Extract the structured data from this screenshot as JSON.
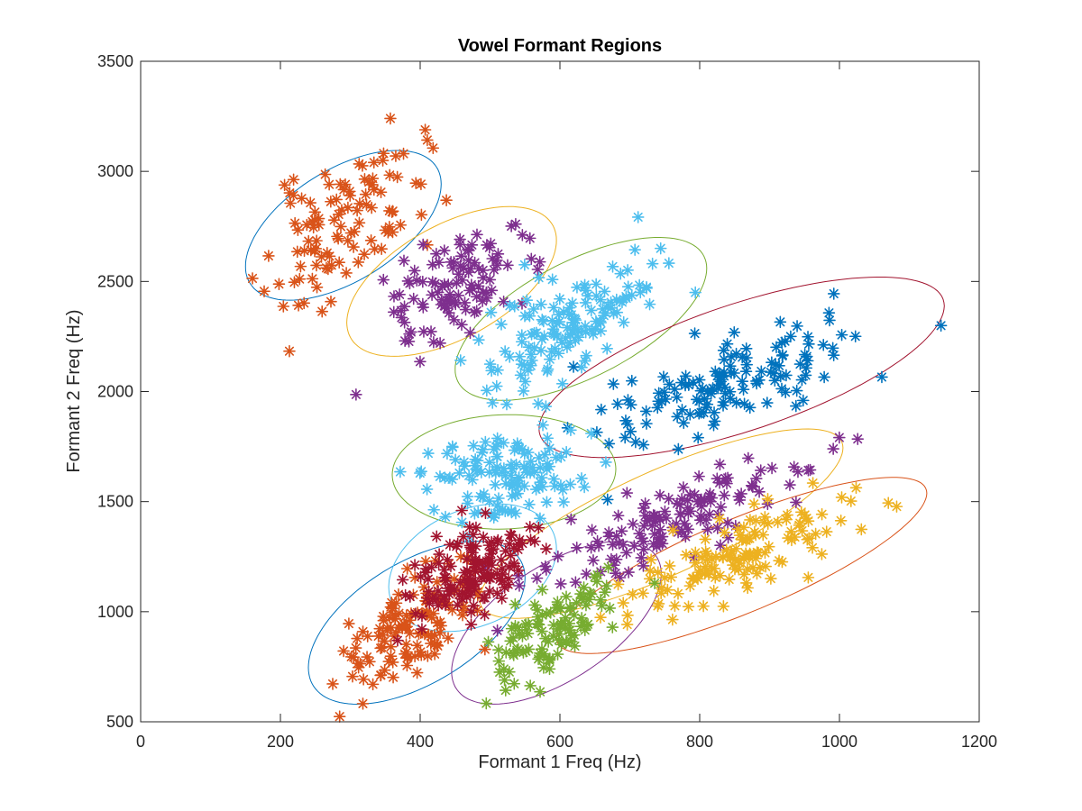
{
  "chart_data": {
    "type": "scatter",
    "title": "Vowel Formant Regions",
    "xlabel": "Formant 1 Freq (Hz)",
    "ylabel": "Formant 2 Freq (Hz)",
    "xlim": [
      0,
      1200
    ],
    "ylim": [
      500,
      3500
    ],
    "xticks": [
      0,
      200,
      400,
      600,
      800,
      1000,
      1200
    ],
    "yticks": [
      500,
      1000,
      1500,
      2000,
      2500,
      3000,
      3500
    ],
    "marker": "asterisk",
    "grid": false,
    "legend": "none",
    "clusters": [
      {
        "color": "#D95319",
        "ellipse_color": "#0072BD",
        "center": [
          290,
          2750
        ],
        "sd": [
          55,
          180
        ],
        "rho": 0.55,
        "n": 110,
        "seed": 11,
        "ellipse": {
          "cx": 290,
          "cy": 2755,
          "rx": 140,
          "ry": 340,
          "rho": 0.55
        }
      },
      {
        "color": "#7E2F8E",
        "ellipse_color": "#EDB120",
        "center": [
          450,
          2480
        ],
        "sd": [
          55,
          150
        ],
        "rho": 0.55,
        "n": 110,
        "seed": 23,
        "ellipse": {
          "cx": 445,
          "cy": 2500,
          "rx": 150,
          "ry": 340,
          "rho": 0.55
        }
      },
      {
        "color": "#4DBEEE",
        "ellipse_color": "#77AC30",
        "center": [
          620,
          2320
        ],
        "sd": [
          60,
          150
        ],
        "rho": 0.62,
        "n": 140,
        "seed": 37,
        "ellipse": {
          "cx": 630,
          "cy": 2330,
          "rx": 180,
          "ry": 370,
          "rho": 0.62
        }
      },
      {
        "color": "#0072BD",
        "ellipse_color": "#A2142F",
        "center": [
          850,
          2050
        ],
        "sd": [
          90,
          140
        ],
        "rho": 0.65,
        "n": 140,
        "seed": 41,
        "ellipse": {
          "cx": 860,
          "cy": 2110,
          "rx": 290,
          "ry": 410,
          "rho": 0.68
        }
      },
      {
        "color": "#4DBEEE",
        "ellipse_color": "#77AC30",
        "center": [
          520,
          1620
        ],
        "sd": [
          55,
          95
        ],
        "rho": 0.1,
        "n": 130,
        "seed": 53,
        "ellipse": {
          "cx": 520,
          "cy": 1635,
          "rx": 160,
          "ry": 260,
          "rho": 0.05
        }
      },
      {
        "color": "#7E2F8E",
        "ellipse_color": "#EDB120",
        "center": [
          760,
          1420
        ],
        "sd": [
          100,
          150
        ],
        "rho": 0.85,
        "n": 140,
        "seed": 67,
        "ellipse": {
          "cx": 745,
          "cy": 1400,
          "rx": 260,
          "ry": 430,
          "rho": 0.8
        }
      },
      {
        "color": "#EDB120",
        "ellipse_color": "#D95319",
        "center": [
          860,
          1250
        ],
        "sd": [
          80,
          140
        ],
        "rho": 0.8,
        "n": 140,
        "seed": 79,
        "ellipse": {
          "cx": 860,
          "cy": 1210,
          "rx": 265,
          "ry": 400,
          "rho": 0.82
        }
      },
      {
        "color": "#D95319",
        "ellipse_color": "#0072BD",
        "center": [
          380,
          920
        ],
        "sd": [
          50,
          150
        ],
        "rho": 0.6,
        "n": 130,
        "seed": 83,
        "ellipse": {
          "cx": 395,
          "cy": 950,
          "rx": 155,
          "ry": 370,
          "rho": 0.55
        }
      },
      {
        "color": "#A2142F",
        "ellipse_color": "#4DBEEE",
        "center": [
          470,
          1180
        ],
        "sd": [
          45,
          110
        ],
        "rho": 0.3,
        "n": 140,
        "seed": 97,
        "ellipse": {
          "cx": 475,
          "cy": 1200,
          "rx": 120,
          "ry": 290,
          "rho": 0.3
        }
      },
      {
        "color": "#77AC30",
        "ellipse_color": "#7E2F8E",
        "center": [
          590,
          920
        ],
        "sd": [
          45,
          110
        ],
        "rho": 0.6,
        "n": 110,
        "seed": 101,
        "ellipse": {
          "cx": 595,
          "cy": 950,
          "rx": 150,
          "ry": 370,
          "rho": 0.6
        }
      }
    ]
  }
}
